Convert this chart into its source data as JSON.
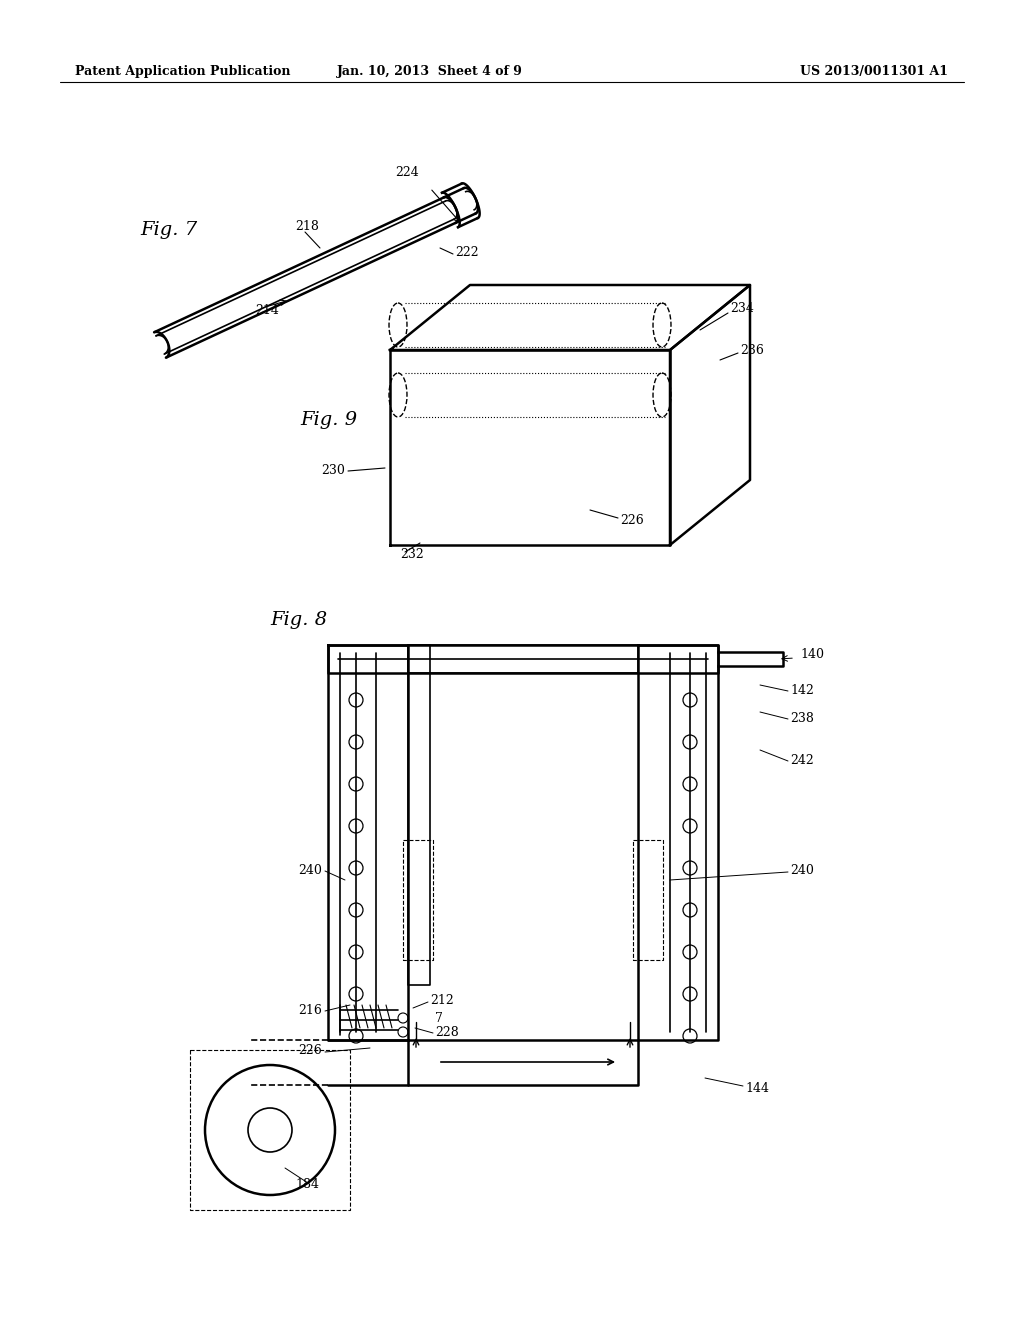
{
  "bg_color": "#ffffff",
  "header_left": "Patent Application Publication",
  "header_mid": "Jan. 10, 2013  Sheet 4 of 9",
  "header_right": "US 2013/0011301 A1",
  "fig7_label": "Fig. 7",
  "fig9_label": "Fig. 9",
  "fig8_label": "Fig. 8"
}
